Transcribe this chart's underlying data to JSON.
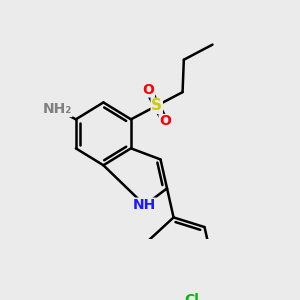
{
  "bg_color": "#ebebeb",
  "bond_color": "#000000",
  "bond_width": 1.8,
  "atom_colors": {
    "N_blue": "#1a1aff",
    "N_gray": "#808080",
    "O": "#ff0000",
    "S": "#cccc00",
    "Cl": "#00bb00",
    "C": "#000000"
  },
  "font_size": 10,
  "xlim": [
    -3.2,
    4.5
  ],
  "ylim": [
    -3.5,
    3.8
  ]
}
